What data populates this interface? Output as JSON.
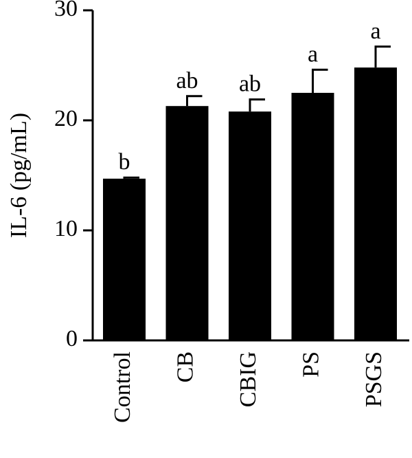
{
  "chart_data": {
    "type": "bar",
    "y_label": "IL-6 (pg/mL)",
    "categories": [
      "Control",
      "CB",
      "CBIG",
      "PS",
      "PSGS"
    ],
    "values": [
      14.7,
      21.3,
      20.8,
      22.5,
      24.8
    ],
    "errors": [
      0.1,
      0.9,
      1.1,
      2.1,
      1.9
    ],
    "annotations": [
      "b",
      "ab",
      "ab",
      "a",
      "a"
    ],
    "color": "#000000",
    "ylim": [
      0,
      30
    ],
    "yticks": [
      0,
      10,
      20,
      30
    ],
    "grid": false
  }
}
